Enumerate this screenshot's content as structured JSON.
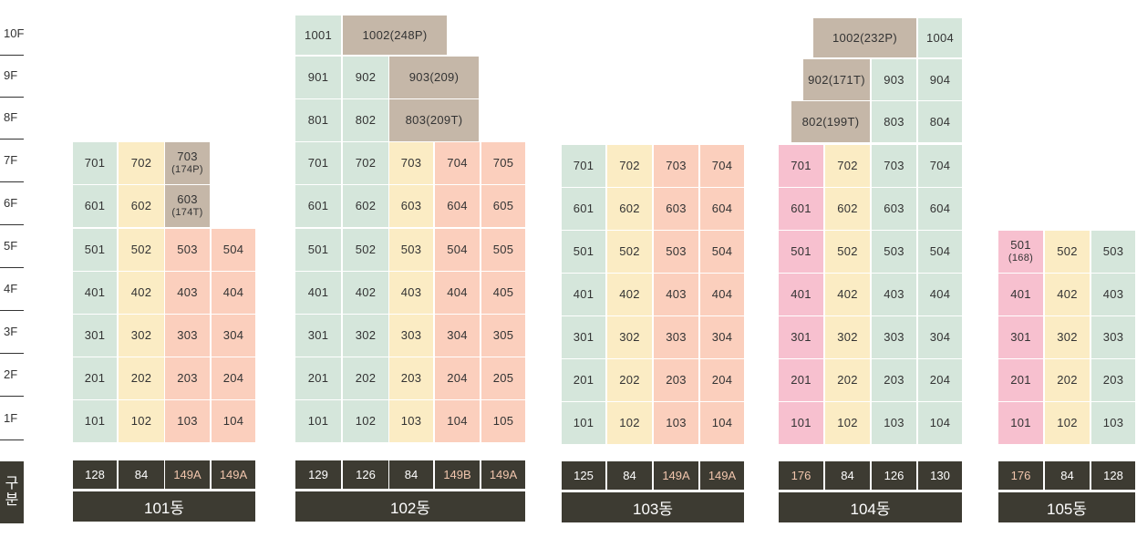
{
  "floors": [
    "10F",
    "9F",
    "8F",
    "7F",
    "6F",
    "5F",
    "4F",
    "3F",
    "2F",
    "1F"
  ],
  "gubun": [
    "구",
    "분"
  ],
  "colors": {
    "g": "#d5e6db",
    "y": "#fbecc4",
    "o": "#fbcfbd",
    "b": "#c5b7a8",
    "p": "#f7c0cf",
    "dark": "#3d3b32"
  },
  "buildings": [
    {
      "name": "101동",
      "types": [
        {
          "label": "128",
          "hl": false
        },
        {
          "label": "84",
          "hl": false
        },
        {
          "label": "149A",
          "hl": true
        },
        {
          "label": "149A",
          "hl": true
        }
      ],
      "units": [
        {
          "label": "701",
          "color": "g"
        },
        {
          "label": "702",
          "color": "y"
        },
        {
          "label": "703",
          "sub": "(174P)",
          "color": "b"
        },
        {
          "label": "601",
          "color": "g"
        },
        {
          "label": "602",
          "color": "y"
        },
        {
          "label": "603",
          "sub": "(174T)",
          "color": "b"
        },
        {
          "label": "501",
          "color": "g"
        },
        {
          "label": "502",
          "color": "y"
        },
        {
          "label": "503",
          "color": "o"
        },
        {
          "label": "504",
          "color": "o"
        },
        {
          "label": "401",
          "color": "g"
        },
        {
          "label": "402",
          "color": "y"
        },
        {
          "label": "403",
          "color": "o"
        },
        {
          "label": "404",
          "color": "o"
        },
        {
          "label": "301",
          "color": "g"
        },
        {
          "label": "302",
          "color": "y"
        },
        {
          "label": "303",
          "color": "o"
        },
        {
          "label": "304",
          "color": "o"
        },
        {
          "label": "201",
          "color": "g"
        },
        {
          "label": "202",
          "color": "y"
        },
        {
          "label": "203",
          "color": "o"
        },
        {
          "label": "204",
          "color": "o"
        },
        {
          "label": "101",
          "color": "g"
        },
        {
          "label": "102",
          "color": "y"
        },
        {
          "label": "103",
          "color": "o"
        },
        {
          "label": "104",
          "color": "o"
        }
      ]
    },
    {
      "name": "102동",
      "types": [
        {
          "label": "129",
          "hl": false
        },
        {
          "label": "126",
          "hl": false
        },
        {
          "label": "84",
          "hl": false
        },
        {
          "label": "149B",
          "hl": true
        },
        {
          "label": "149A",
          "hl": true
        }
      ],
      "units": [
        {
          "label": "1001",
          "color": "g"
        },
        {
          "label": "1002(248P)",
          "color": "b"
        },
        {
          "label": "901",
          "color": "g"
        },
        {
          "label": "902",
          "color": "g"
        },
        {
          "label": "903(209)",
          "color": "b"
        },
        {
          "label": "801",
          "color": "g"
        },
        {
          "label": "802",
          "color": "g"
        },
        {
          "label": "803(209T)",
          "color": "b"
        },
        {
          "label": "701",
          "color": "g"
        },
        {
          "label": "702",
          "color": "g"
        },
        {
          "label": "703",
          "color": "y"
        },
        {
          "label": "704",
          "color": "o"
        },
        {
          "label": "705",
          "color": "o"
        },
        {
          "label": "601",
          "color": "g"
        },
        {
          "label": "602",
          "color": "g"
        },
        {
          "label": "603",
          "color": "y"
        },
        {
          "label": "604",
          "color": "o"
        },
        {
          "label": "605",
          "color": "o"
        },
        {
          "label": "501",
          "color": "g"
        },
        {
          "label": "502",
          "color": "g"
        },
        {
          "label": "503",
          "color": "y"
        },
        {
          "label": "504",
          "color": "o"
        },
        {
          "label": "505",
          "color": "o"
        },
        {
          "label": "401",
          "color": "g"
        },
        {
          "label": "402",
          "color": "g"
        },
        {
          "label": "403",
          "color": "y"
        },
        {
          "label": "404",
          "color": "o"
        },
        {
          "label": "405",
          "color": "o"
        },
        {
          "label": "301",
          "color": "g"
        },
        {
          "label": "302",
          "color": "g"
        },
        {
          "label": "303",
          "color": "y"
        },
        {
          "label": "304",
          "color": "o"
        },
        {
          "label": "305",
          "color": "o"
        },
        {
          "label": "201",
          "color": "g"
        },
        {
          "label": "202",
          "color": "g"
        },
        {
          "label": "203",
          "color": "y"
        },
        {
          "label": "204",
          "color": "o"
        },
        {
          "label": "205",
          "color": "o"
        },
        {
          "label": "101",
          "color": "g"
        },
        {
          "label": "102",
          "color": "g"
        },
        {
          "label": "103",
          "color": "y"
        },
        {
          "label": "104",
          "color": "o"
        },
        {
          "label": "105",
          "color": "o"
        }
      ]
    },
    {
      "name": "103동",
      "types": [
        {
          "label": "125",
          "hl": false
        },
        {
          "label": "84",
          "hl": false
        },
        {
          "label": "149A",
          "hl": true
        },
        {
          "label": "149A",
          "hl": true
        }
      ],
      "units": [
        {
          "label": "701",
          "color": "g"
        },
        {
          "label": "702",
          "color": "y"
        },
        {
          "label": "703",
          "color": "o"
        },
        {
          "label": "704",
          "color": "o"
        },
        {
          "label": "601",
          "color": "g"
        },
        {
          "label": "602",
          "color": "y"
        },
        {
          "label": "603",
          "color": "o"
        },
        {
          "label": "604",
          "color": "o"
        },
        {
          "label": "501",
          "color": "g"
        },
        {
          "label": "502",
          "color": "y"
        },
        {
          "label": "503",
          "color": "o"
        },
        {
          "label": "504",
          "color": "o"
        },
        {
          "label": "401",
          "color": "g"
        },
        {
          "label": "402",
          "color": "y"
        },
        {
          "label": "403",
          "color": "o"
        },
        {
          "label": "404",
          "color": "o"
        },
        {
          "label": "301",
          "color": "g"
        },
        {
          "label": "302",
          "color": "y"
        },
        {
          "label": "303",
          "color": "o"
        },
        {
          "label": "304",
          "color": "o"
        },
        {
          "label": "201",
          "color": "g"
        },
        {
          "label": "202",
          "color": "y"
        },
        {
          "label": "203",
          "color": "o"
        },
        {
          "label": "204",
          "color": "o"
        },
        {
          "label": "101",
          "color": "g"
        },
        {
          "label": "102",
          "color": "y"
        },
        {
          "label": "103",
          "color": "o"
        },
        {
          "label": "104",
          "color": "o"
        }
      ]
    },
    {
      "name": "104동",
      "types": [
        {
          "label": "176",
          "hl": true
        },
        {
          "label": "84",
          "hl": false
        },
        {
          "label": "126",
          "hl": false
        },
        {
          "label": "130",
          "hl": false
        }
      ],
      "units": [
        {
          "label": "1002(232P)",
          "color": "b"
        },
        {
          "label": "1004",
          "color": "g"
        },
        {
          "label": "902(171T)",
          "color": "b"
        },
        {
          "label": "903",
          "color": "g"
        },
        {
          "label": "904",
          "color": "g"
        },
        {
          "label": "802(199T)",
          "color": "b"
        },
        {
          "label": "803",
          "color": "g"
        },
        {
          "label": "804",
          "color": "g"
        },
        {
          "label": "701",
          "color": "p"
        },
        {
          "label": "702",
          "color": "y"
        },
        {
          "label": "703",
          "color": "g"
        },
        {
          "label": "704",
          "color": "g"
        },
        {
          "label": "601",
          "color": "p"
        },
        {
          "label": "602",
          "color": "y"
        },
        {
          "label": "603",
          "color": "g"
        },
        {
          "label": "604",
          "color": "g"
        },
        {
          "label": "501",
          "color": "p"
        },
        {
          "label": "502",
          "color": "y"
        },
        {
          "label": "503",
          "color": "g"
        },
        {
          "label": "504",
          "color": "g"
        },
        {
          "label": "401",
          "color": "p"
        },
        {
          "label": "402",
          "color": "y"
        },
        {
          "label": "403",
          "color": "g"
        },
        {
          "label": "404",
          "color": "g"
        },
        {
          "label": "301",
          "color": "p"
        },
        {
          "label": "302",
          "color": "y"
        },
        {
          "label": "303",
          "color": "g"
        },
        {
          "label": "304",
          "color": "g"
        },
        {
          "label": "201",
          "color": "p"
        },
        {
          "label": "202",
          "color": "y"
        },
        {
          "label": "203",
          "color": "g"
        },
        {
          "label": "204",
          "color": "g"
        },
        {
          "label": "101",
          "color": "p"
        },
        {
          "label": "102",
          "color": "y"
        },
        {
          "label": "103",
          "color": "g"
        },
        {
          "label": "104",
          "color": "g"
        }
      ]
    },
    {
      "name": "105동",
      "types": [
        {
          "label": "176",
          "hl": true
        },
        {
          "label": "84",
          "hl": false
        },
        {
          "label": "128",
          "hl": false
        }
      ],
      "units": [
        {
          "label": "501",
          "sub": "(168)",
          "color": "p"
        },
        {
          "label": "502",
          "color": "y"
        },
        {
          "label": "503",
          "color": "g"
        },
        {
          "label": "401",
          "color": "p"
        },
        {
          "label": "402",
          "color": "y"
        },
        {
          "label": "403",
          "color": "g"
        },
        {
          "label": "301",
          "color": "p"
        },
        {
          "label": "302",
          "color": "y"
        },
        {
          "label": "303",
          "color": "g"
        },
        {
          "label": "201",
          "color": "p"
        },
        {
          "label": "202",
          "color": "y"
        },
        {
          "label": "203",
          "color": "g"
        },
        {
          "label": "101",
          "color": "p"
        },
        {
          "label": "102",
          "color": "y"
        },
        {
          "label": "103",
          "color": "g"
        }
      ]
    }
  ]
}
